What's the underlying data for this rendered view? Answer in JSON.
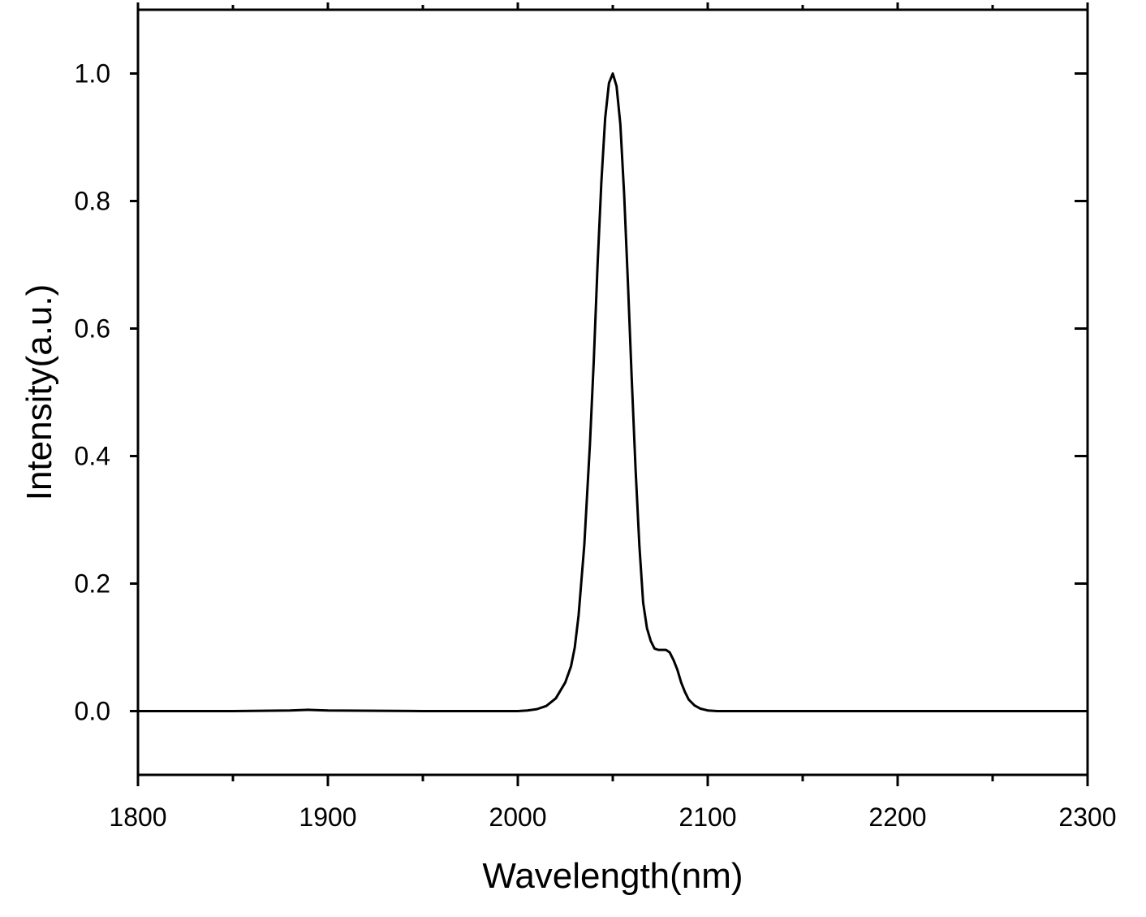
{
  "chart_data": {
    "type": "line",
    "title": "",
    "xlabel": "Wavelength(nm)",
    "ylabel": "Intensity(a.u.)",
    "xlim": [
      1800,
      2300
    ],
    "ylim": [
      -0.1,
      1.1
    ],
    "x_ticks": [
      1800,
      1900,
      2000,
      2100,
      2200,
      2300
    ],
    "x_tick_labels": [
      "1800",
      "1900",
      "2000",
      "2100",
      "2200",
      "2300"
    ],
    "y_ticks": [
      0.0,
      0.2,
      0.4,
      0.6,
      0.8,
      1.0
    ],
    "y_tick_labels": [
      "0.0",
      "0.2",
      "0.4",
      "0.6",
      "0.8",
      "1.0"
    ],
    "grid": false,
    "legend": "none",
    "line_color": "#000000",
    "series": [
      {
        "x": [
          1800,
          1850,
          1880,
          1890,
          1900,
          1950,
          2000,
          2005,
          2010,
          2015,
          2020,
          2025,
          2028,
          2030,
          2032,
          2035,
          2038,
          2040,
          2042,
          2044,
          2046,
          2048,
          2050,
          2052,
          2054,
          2056,
          2058,
          2060,
          2062,
          2064,
          2066,
          2068,
          2070,
          2072,
          2074,
          2076,
          2078,
          2080,
          2082,
          2084,
          2086,
          2088,
          2090,
          2093,
          2096,
          2100,
          2105,
          2110,
          2150,
          2200,
          2250,
          2300
        ],
        "y": [
          0,
          0,
          0.001,
          0.002,
          0.001,
          0,
          0,
          0.001,
          0.003,
          0.008,
          0.02,
          0.045,
          0.07,
          0.1,
          0.15,
          0.26,
          0.42,
          0.55,
          0.7,
          0.83,
          0.93,
          0.985,
          1.0,
          0.98,
          0.92,
          0.81,
          0.67,
          0.52,
          0.38,
          0.26,
          0.17,
          0.13,
          0.11,
          0.098,
          0.096,
          0.096,
          0.096,
          0.092,
          0.08,
          0.065,
          0.045,
          0.03,
          0.018,
          0.009,
          0.004,
          0.001,
          0,
          0,
          0,
          0,
          0,
          0
        ]
      }
    ]
  }
}
